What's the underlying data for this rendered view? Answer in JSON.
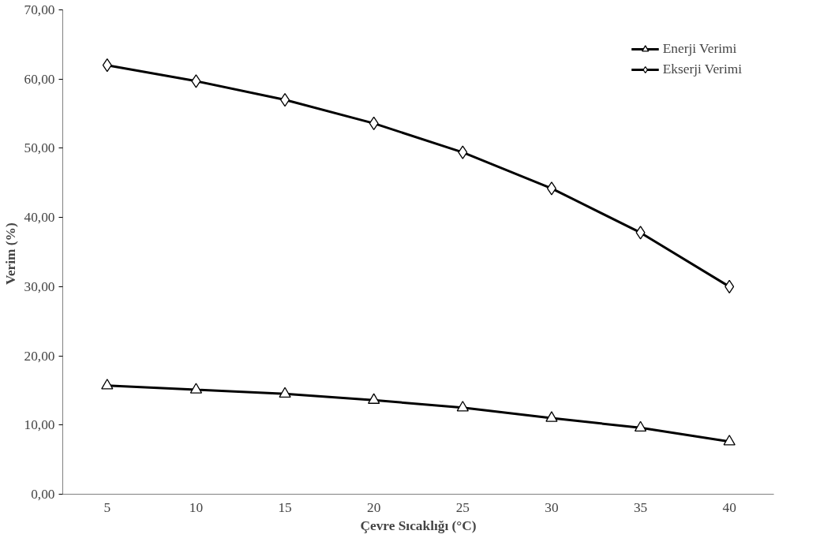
{
  "chart_data": {
    "type": "line",
    "xlabel": "Çevre Sıcaklığı (°C)",
    "ylabel": "Verim  (%)",
    "categories": [
      "5",
      "10",
      "15",
      "20",
      "25",
      "30",
      "35",
      "40"
    ],
    "series": [
      {
        "name": "Enerji Verimi",
        "color": "#000000",
        "marker": "triangle",
        "values": [
          15.7,
          15.1,
          14.5,
          13.6,
          12.5,
          11.0,
          9.6,
          7.6
        ]
      },
      {
        "name": "Ekserji Verimi",
        "color": "#000000",
        "marker": "diamond",
        "values": [
          62.0,
          59.7,
          57.0,
          53.6,
          49.4,
          44.2,
          37.8,
          30.0
        ]
      }
    ],
    "ylim": [
      0,
      70
    ],
    "yticks": [
      {
        "value": 0,
        "label": "0,00"
      },
      {
        "value": 10,
        "label": "10,00"
      },
      {
        "value": 20,
        "label": "20,00"
      },
      {
        "value": 30,
        "label": "30,00"
      },
      {
        "value": 40,
        "label": "40,00"
      },
      {
        "value": 50,
        "label": "50,00"
      },
      {
        "value": 60,
        "label": "60,00"
      },
      {
        "value": 70,
        "label": "70,00"
      }
    ],
    "grid": false,
    "legend": "top right",
    "line_style": "solid"
  }
}
